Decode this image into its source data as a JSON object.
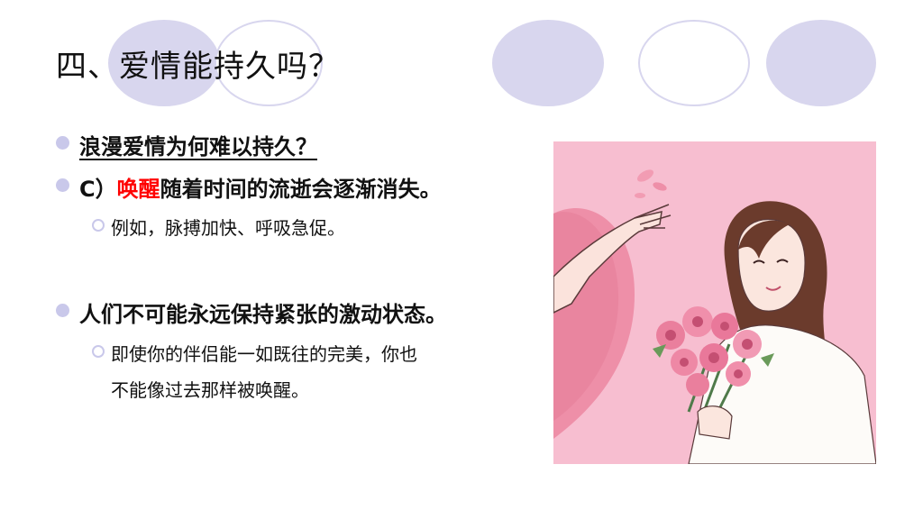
{
  "slide": {
    "title": "四、爱情能持久吗？",
    "bullets": {
      "q": "浪漫爱情为何难以持久？",
      "c_prefix": "C）",
      "c_highlight": "唤醒",
      "c_rest": "随着时间的流逝会逐渐消失。",
      "c_example": "例如，脉搏加快、呼吸急促。",
      "p3": "人们不可能永远保持紧张的激动状态。",
      "p3_sub_line1": "即使你的伴侣能一如既往的完美，你也",
      "p3_sub_line2": "不能像过去那样被唤醒。"
    },
    "colors": {
      "accent_ellipse": "#d8d6ee",
      "bullet": "#c9c8ea",
      "highlight": "#ff0000",
      "illustration_bg": "#f7bed0"
    },
    "illustration": {
      "icon": "woman-with-flowers-illustration"
    }
  }
}
